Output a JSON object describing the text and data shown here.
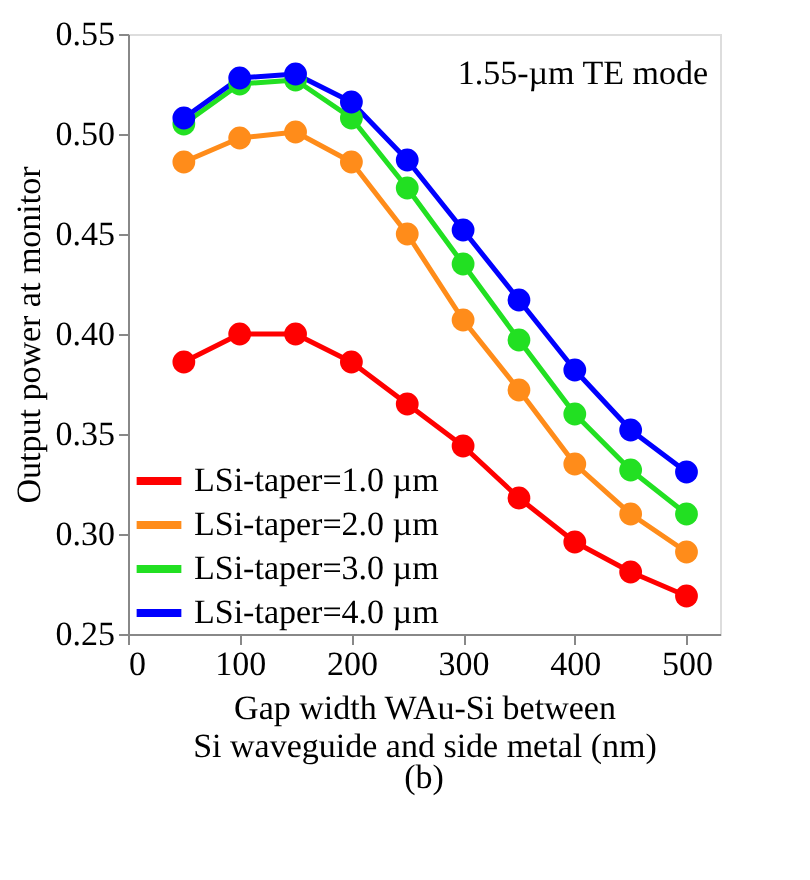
{
  "chart_data": {
    "type": "line",
    "x": [
      50,
      100,
      150,
      200,
      250,
      300,
      350,
      400,
      450,
      500
    ],
    "series": [
      {
        "name": "LSi-taper=1.0 µm",
        "color": "#ff0000",
        "values": [
          0.386,
          0.4,
          0.4,
          0.386,
          0.365,
          0.344,
          0.318,
          0.296,
          0.281,
          0.269
        ]
      },
      {
        "name": "LSi-taper=2.0 µm",
        "color": "#ff8c1a",
        "values": [
          0.486,
          0.498,
          0.501,
          0.486,
          0.45,
          0.407,
          0.372,
          0.335,
          0.31,
          0.291
        ]
      },
      {
        "name": "LSi-taper=3.0 µm",
        "color": "#22e022",
        "values": [
          0.505,
          0.525,
          0.527,
          0.508,
          0.473,
          0.435,
          0.397,
          0.36,
          0.332,
          0.31
        ]
      },
      {
        "name": "LSi-taper=4.0 µm",
        "color": "#0000ff",
        "values": [
          0.508,
          0.528,
          0.53,
          0.516,
          0.487,
          0.452,
          0.417,
          0.382,
          0.352,
          0.331
        ]
      }
    ],
    "xlabel": "Gap width WAu-Si between\nSi waveguide and side metal (nm)",
    "ylabel": "Output power at monitor",
    "xlim": [
      0,
      530
    ],
    "xticks": [
      0,
      100,
      200,
      300,
      400,
      500
    ],
    "ylim": [
      0.25,
      0.55
    ],
    "yticks": [
      {
        "value": 0.25,
        "label": "0.25"
      },
      {
        "value": 0.3,
        "label": "0.30"
      },
      {
        "value": 0.35,
        "label": "0.35"
      },
      {
        "value": 0.4,
        "label": "0.40"
      },
      {
        "value": 0.45,
        "label": "0.45"
      },
      {
        "value": 0.5,
        "label": "0.50"
      },
      {
        "value": 0.55,
        "label": "0.55"
      }
    ],
    "annotations": [
      "1.55-µm TE mode",
      "(b)"
    ],
    "legend": "bottom left",
    "grid": false,
    "marker": "circle",
    "line_style": "solid"
  }
}
